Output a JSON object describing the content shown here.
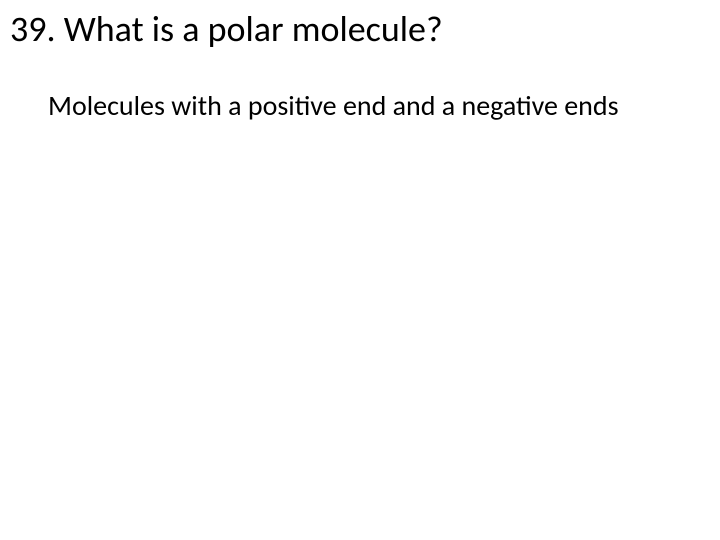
{
  "slide": {
    "title": "39. What is a polar molecule?",
    "body": "Molecules with a positive end and a negative ends",
    "background_color": "#ffffff",
    "text_color": "#000000",
    "title_fontsize": 36,
    "body_fontsize": 28,
    "font_family": "Calibri"
  }
}
